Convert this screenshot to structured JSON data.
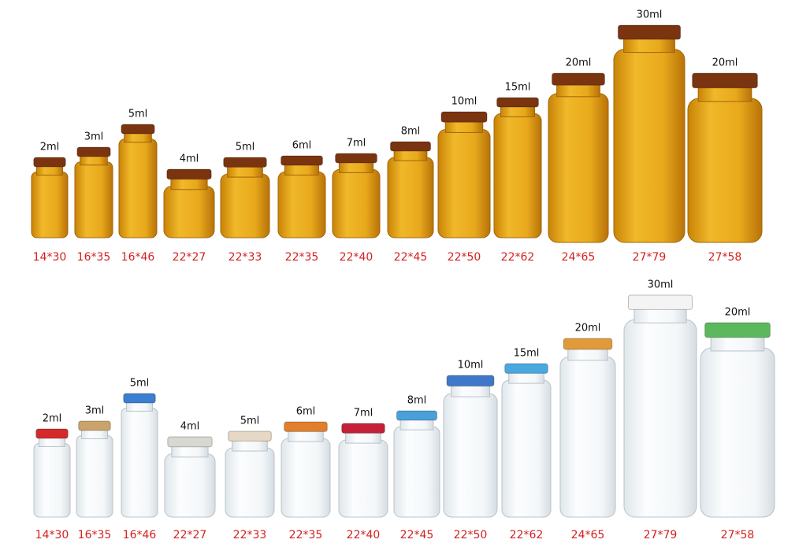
{
  "rows": [
    {
      "items": [
        {
          "capacity": "2ml",
          "size": "14*30"
        },
        {
          "capacity": "3ml",
          "size": "16*35"
        },
        {
          "capacity": "5ml",
          "size": "16*46"
        },
        {
          "capacity": "4ml",
          "size": "22*27"
        },
        {
          "capacity": "5ml",
          "size": "22*33"
        },
        {
          "capacity": "6ml",
          "size": "22*35"
        },
        {
          "capacity": "7ml",
          "size": "22*40"
        },
        {
          "capacity": "8ml",
          "size": "22*45"
        },
        {
          "capacity": "10ml",
          "size": "22*50"
        },
        {
          "capacity": "15ml",
          "size": "22*62"
        },
        {
          "capacity": "20ml",
          "size": "24*65"
        },
        {
          "capacity": "30ml",
          "size": "27*79"
        },
        {
          "capacity": "20ml",
          "size": "27*58"
        }
      ]
    },
    {
      "items": [
        {
          "capacity": "2ml",
          "size": "14*30"
        },
        {
          "capacity": "3ml",
          "size": "16*35"
        },
        {
          "capacity": "5ml",
          "size": "16*46"
        },
        {
          "capacity": "4ml",
          "size": "22*27"
        },
        {
          "capacity": "5ml",
          "size": "22*33"
        },
        {
          "capacity": "6ml",
          "size": "22*35"
        },
        {
          "capacity": "7ml",
          "size": "22*40"
        },
        {
          "capacity": "8ml",
          "size": "22*45"
        },
        {
          "capacity": "10ml",
          "size": "22*50"
        },
        {
          "capacity": "15ml",
          "size": "22*62"
        },
        {
          "capacity": "20ml",
          "size": "24*65"
        },
        {
          "capacity": "30ml",
          "size": "27*79"
        },
        {
          "capacity": "20ml",
          "size": "27*58"
        }
      ]
    }
  ]
}
